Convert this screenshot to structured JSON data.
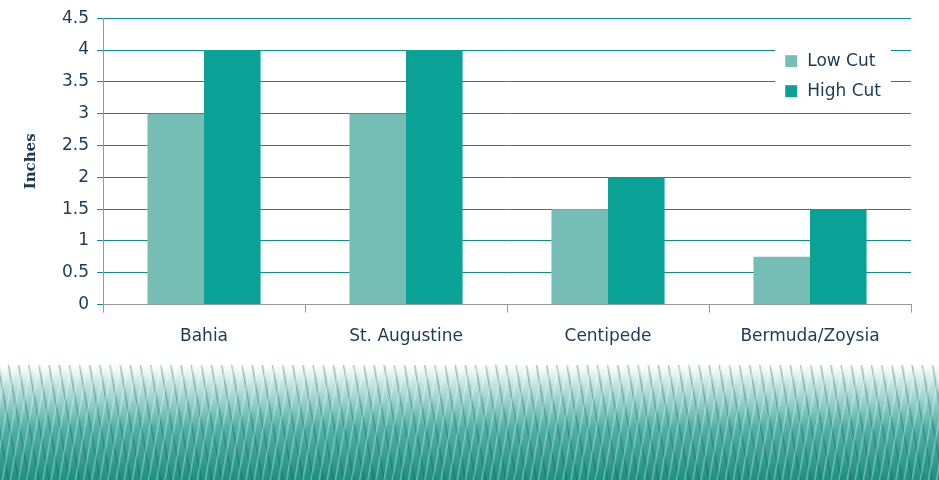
{
  "chart_data": {
    "type": "bar",
    "y_label": "Inches",
    "categories": [
      "Bahia",
      "St. Augustine",
      "Centipede",
      "Bermuda/Zoysia"
    ],
    "series": [
      {
        "name": "Low Cut",
        "color": "#76bdb5",
        "values": [
          3,
          3,
          1.5,
          0.75
        ]
      },
      {
        "name": "High Cut",
        "color": "#0aa296",
        "values": [
          4,
          4,
          2,
          1.5
        ]
      }
    ],
    "ylim": [
      0,
      4.5
    ],
    "yticks": [
      0,
      0.5,
      1,
      1.5,
      2,
      2.5,
      3,
      3.5,
      4,
      4.5
    ],
    "grid": true,
    "legend": "upper right"
  }
}
